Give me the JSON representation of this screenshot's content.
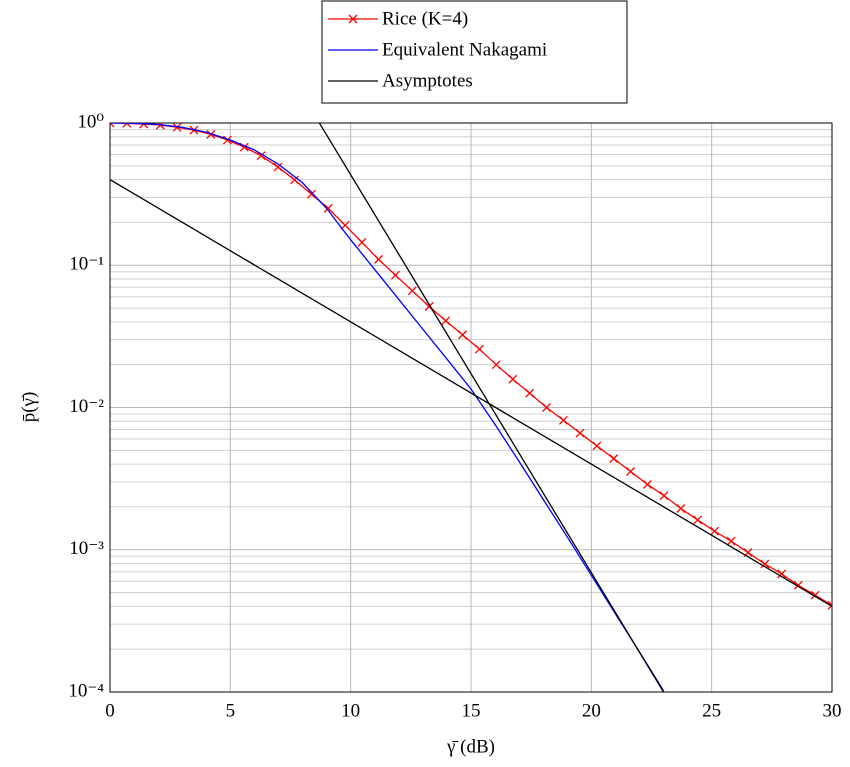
{
  "chart_data": {
    "type": "line",
    "xlabel": "γ̄ (dB)",
    "ylabel": "p̄(γ̄)",
    "log_y": true,
    "grid": true,
    "legend": "top",
    "xlim": [
      0,
      30
    ],
    "ylim": [
      0.0001,
      1
    ],
    "xticks": [
      0,
      5,
      10,
      15,
      20,
      25,
      30
    ],
    "yticks": [
      {
        "value": 1,
        "label": "10⁰"
      },
      {
        "value": 0.1,
        "label": "10⁻¹"
      },
      {
        "value": 0.01,
        "label": "10⁻²"
      },
      {
        "value": 0.001,
        "label": "10⁻³"
      },
      {
        "value": 0.0001,
        "label": "10⁻⁴"
      }
    ],
    "yminorticks": [
      0.2,
      0.3,
      0.4,
      0.5,
      0.6,
      0.7,
      0.8,
      0.9,
      0.02,
      0.03,
      0.04,
      0.05,
      0.06,
      0.07,
      0.08,
      0.09,
      0.002,
      0.003,
      0.004,
      0.005,
      0.006,
      0.007,
      0.008,
      0.009,
      0.0002,
      0.0003,
      0.0004,
      0.0005,
      0.0006,
      0.0007,
      0.0008,
      0.0009
    ],
    "series": [
      {
        "name": "Rice (K=4)",
        "color": "#ff0000",
        "marker": "x",
        "x": [
          0,
          0.7,
          1.4,
          2.09,
          2.79,
          3.49,
          4.19,
          4.88,
          5.58,
          6.28,
          6.98,
          7.67,
          8.37,
          9.07,
          9.77,
          10.47,
          11.16,
          11.86,
          12.56,
          13.26,
          13.95,
          14.65,
          15.35,
          16.05,
          16.74,
          17.44,
          18.14,
          18.84,
          19.53,
          20.23,
          20.93,
          21.63,
          22.33,
          23.02,
          23.72,
          24.42,
          25.12,
          25.81,
          26.51,
          27.21,
          27.91,
          28.6,
          29.3,
          30
        ],
        "values": [
          1.0,
          0.995,
          0.984,
          0.966,
          0.933,
          0.891,
          0.832,
          0.759,
          0.676,
          0.589,
          0.49,
          0.398,
          0.316,
          0.251,
          0.191,
          0.145,
          0.11,
          0.0851,
          0.0661,
          0.0513,
          0.0407,
          0.0324,
          0.0257,
          0.02,
          0.0158,
          0.0126,
          0.01,
          0.00813,
          0.00661,
          0.00537,
          0.00437,
          0.00355,
          0.00288,
          0.0024,
          0.00195,
          0.00162,
          0.00135,
          0.00115,
          0.000955,
          0.000794,
          0.000676,
          0.000562,
          0.000479,
          0.000407
        ]
      },
      {
        "name": "Equivalent Nakagami",
        "color": "#0000ff",
        "x": [
          0,
          1,
          2,
          3,
          4,
          5,
          6,
          7,
          8,
          9,
          10,
          11,
          12,
          13,
          14,
          15,
          16,
          17,
          18,
          19,
          20,
          21,
          22,
          23
        ],
        "values": [
          1.0,
          0.995,
          0.977,
          0.933,
          0.861,
          0.759,
          0.646,
          0.513,
          0.38,
          0.251,
          0.151,
          0.0933,
          0.0575,
          0.0355,
          0.0219,
          0.0135,
          0.00759,
          0.00417,
          0.00226,
          0.00123,
          0.000661,
          0.000355,
          0.000191,
          0.000102
        ]
      },
      {
        "name": "Asymptotes",
        "color": "#000000",
        "x": [
          0,
          30,
          null,
          8.7,
          23
        ],
        "values": [
          0.4,
          0.0004,
          null,
          1,
          0.0001
        ]
      }
    ]
  }
}
